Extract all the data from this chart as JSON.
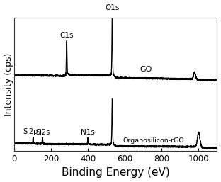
{
  "xlabel": "Binding Energy (eV)",
  "ylabel": "Intensity (cps)",
  "xlim": [
    0,
    1100
  ],
  "background_color": "#ffffff",
  "line_color": "#000000",
  "go_label": "GO",
  "rgo_label": "Organosilicon-rGO",
  "xlabel_fontsize": 11,
  "ylabel_fontsize": 9,
  "tick_fontsize": 8.5,
  "xticks": [
    0,
    200,
    400,
    600,
    800,
    1000
  ]
}
